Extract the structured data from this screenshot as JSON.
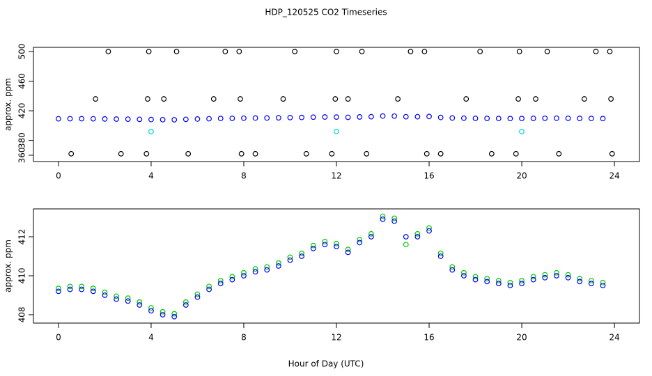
{
  "chart_data": [
    {
      "type": "scatter",
      "title": "HDP_120525  CO2 Timeseries",
      "y_label": "approx. ppm",
      "xlim": [
        -1.08,
        25.08
      ],
      "xticks": [
        0,
        4,
        8,
        12,
        16,
        20,
        24
      ],
      "ylim": [
        351.5,
        505.6
      ],
      "yticks": [
        360,
        380,
        420,
        460,
        500
      ],
      "series": [
        {
          "color": "#0000ff",
          "x": [
            0,
            0.5,
            1,
            1.5,
            2,
            2.5,
            3,
            3.5,
            4,
            4.5,
            5,
            5.5,
            6,
            6.5,
            7,
            7.5,
            8,
            8.5,
            9,
            9.5,
            10,
            10.5,
            11,
            11.5,
            12,
            12.5,
            13,
            13.5,
            14,
            14.5,
            15,
            15.5,
            16,
            16.5,
            17,
            17.5,
            18,
            18.5,
            19,
            19.5,
            20,
            20.5,
            21,
            21.5,
            22,
            22.5,
            23,
            23.5
          ],
          "values": [
            409.2,
            409.3,
            409.3,
            409.2,
            409.0,
            408.8,
            408.7,
            408.5,
            408.2,
            408.0,
            407.9,
            408.5,
            408.9,
            409.3,
            409.6,
            409.8,
            410.0,
            410.2,
            410.3,
            410.5,
            410.8,
            411.0,
            411.4,
            411.6,
            411.5,
            411.2,
            411.7,
            412.0,
            412.9,
            412.8,
            412.0,
            412.0,
            412.3,
            411.0,
            410.3,
            410.0,
            409.8,
            409.7,
            409.6,
            409.5,
            409.6,
            409.8,
            409.9,
            410.0,
            409.9,
            409.7,
            409.6,
            409.5
          ]
        },
        {
          "color": "#000000",
          "x": [
            2.15,
            3.9,
            5.1,
            7.2,
            7.8,
            10.2,
            12,
            13.1,
            15.2,
            15.8,
            18.2,
            19.9,
            21.1,
            23.2,
            23.8,
            1.6,
            3.85,
            4.55,
            6.7,
            7.85,
            9.7,
            11.95,
            12.5,
            14.65,
            17.6,
            19.85,
            20.6,
            22.7,
            23.85,
            0.55,
            2.7,
            3.8,
            5.6,
            7.9,
            8.5,
            10.7,
            11.8,
            13.3,
            15.9,
            16.5,
            18.7,
            19.75,
            21.6,
            23.9
          ],
          "values": [
            500,
            500,
            500,
            500,
            500,
            500,
            500,
            500,
            500,
            500,
            500,
            500,
            500,
            500,
            500,
            436,
            436,
            436,
            436,
            436,
            436,
            436,
            436,
            436,
            436,
            436,
            436,
            436,
            436,
            362,
            362,
            362,
            362,
            362,
            362,
            362,
            362,
            362,
            362,
            362,
            362,
            362,
            362,
            362
          ]
        },
        {
          "color": "#00d8d8",
          "x": [
            4,
            12,
            20
          ],
          "values": [
            392,
            392,
            392
          ]
        }
      ]
    },
    {
      "type": "scatter",
      "y_label": "approx. ppm",
      "x_label": "Hour of Day (UTC)",
      "xlim": [
        -1.08,
        25.08
      ],
      "xticks": [
        0,
        4,
        8,
        12,
        16,
        20,
        24
      ],
      "ylim": [
        407.57,
        413.43
      ],
      "yticks": [
        408,
        410,
        412
      ],
      "series": [
        {
          "color": "#00c800",
          "x": [
            0,
            0.5,
            1,
            1.5,
            2,
            2.5,
            3,
            3.5,
            4,
            4.5,
            5,
            5.5,
            6,
            6.5,
            7,
            7.5,
            8,
            8.5,
            9,
            9.5,
            10,
            10.5,
            11,
            11.5,
            12,
            12.5,
            13,
            13.5,
            14,
            14.5,
            15,
            15.5,
            16,
            16.5,
            17,
            17.5,
            18,
            18.5,
            19,
            19.5,
            20,
            20.5,
            21,
            21.5,
            22,
            22.5,
            23,
            23.5
          ],
          "values": [
            409.35,
            409.45,
            409.45,
            409.35,
            409.15,
            408.95,
            408.85,
            408.65,
            408.35,
            408.15,
            408.05,
            408.65,
            409.05,
            409.45,
            409.75,
            409.95,
            410.15,
            410.35,
            410.45,
            410.65,
            410.95,
            411.15,
            411.55,
            411.75,
            411.65,
            411.35,
            411.85,
            412.15,
            413.05,
            412.95,
            411.6,
            412.15,
            412.45,
            411.15,
            410.45,
            410.15,
            409.95,
            409.85,
            409.75,
            409.65,
            409.75,
            409.95,
            410.05,
            410.15,
            410.05,
            409.85,
            409.75,
            409.65
          ]
        },
        {
          "color": "#0000ff",
          "x": [
            0,
            0.5,
            1,
            1.5,
            2,
            2.5,
            3,
            3.5,
            4,
            4.5,
            5,
            5.5,
            6,
            6.5,
            7,
            7.5,
            8,
            8.5,
            9,
            9.5,
            10,
            10.5,
            11,
            11.5,
            12,
            12.5,
            13,
            13.5,
            14,
            14.5,
            15,
            15.5,
            16,
            16.5,
            17,
            17.5,
            18,
            18.5,
            19,
            19.5,
            20,
            20.5,
            21,
            21.5,
            22,
            22.5,
            23,
            23.5
          ],
          "values": [
            409.2,
            409.3,
            409.3,
            409.2,
            409.0,
            408.8,
            408.7,
            408.5,
            408.2,
            408.0,
            407.9,
            408.5,
            408.9,
            409.3,
            409.6,
            409.8,
            410.0,
            410.2,
            410.3,
            410.5,
            410.8,
            411.0,
            411.4,
            411.6,
            411.5,
            411.2,
            411.7,
            412.0,
            412.9,
            412.8,
            412.0,
            412.0,
            412.3,
            411.0,
            410.3,
            410.0,
            409.8,
            409.7,
            409.6,
            409.5,
            409.6,
            409.8,
            409.9,
            410.0,
            409.9,
            409.7,
            409.6,
            409.5
          ]
        }
      ]
    }
  ]
}
